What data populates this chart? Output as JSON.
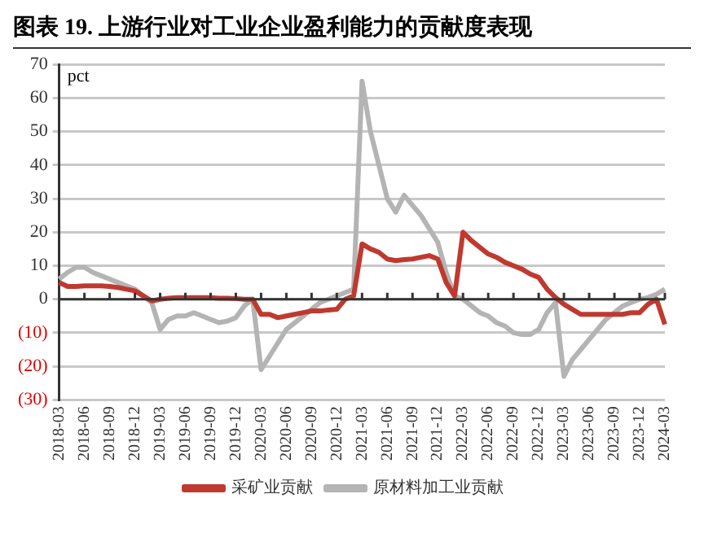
{
  "chart_data": {
    "type": "line",
    "title": "图表 19. 上游行业对工业企业盈利能力的贡献度表现",
    "ylabel": "pct",
    "categories": [
      "2018-03",
      null,
      null,
      "2018-06",
      null,
      null,
      "2018-09",
      null,
      null,
      "2018-12",
      null,
      null,
      "2019-03",
      null,
      null,
      "2019-06",
      null,
      null,
      "2019-09",
      null,
      null,
      "2019-12",
      null,
      null,
      "2020-03",
      null,
      null,
      "2020-06",
      null,
      null,
      "2020-09",
      null,
      null,
      "2020-12",
      null,
      null,
      "2021-03",
      null,
      null,
      "2021-06",
      null,
      null,
      "2021-09",
      null,
      null,
      "2021-12",
      null,
      null,
      "2022-03",
      null,
      null,
      "2022-06",
      null,
      null,
      "2022-09",
      null,
      null,
      "2022-12",
      null,
      null,
      "2023-03",
      null,
      null,
      "2023-06",
      null,
      null,
      "2023-09",
      null,
      null,
      "2023-12",
      null,
      null,
      "2024-03"
    ],
    "series": [
      {
        "name": "采矿业贡献",
        "color": "#c0392f",
        "values": [
          5,
          3.8,
          3.8,
          4,
          4,
          4,
          3.8,
          3.5,
          3,
          2.5,
          1,
          -0.5,
          0,
          0.3,
          0.5,
          0.5,
          0.5,
          0.5,
          0.5,
          0.3,
          0.3,
          0.2,
          0,
          0,
          -4.5,
          -4.5,
          -5.5,
          -5,
          -4.5,
          -4,
          -3.5,
          -3.5,
          -3.2,
          -3,
          0,
          1,
          16.5,
          15,
          14,
          12,
          11.5,
          11.8,
          12,
          12.5,
          13,
          12,
          5,
          1,
          20,
          17.5,
          15.5,
          13.5,
          12.5,
          11,
          10,
          9,
          7.5,
          6.5,
          3,
          0.5,
          -1.5,
          -3,
          -4.5,
          -4.5,
          -4.5,
          -4.5,
          -4.5,
          -4.5,
          -4,
          -4,
          -1.5,
          0,
          -7.5
        ]
      },
      {
        "name": "原材料加工业贡献",
        "color": "#b4b4b4",
        "values": [
          6,
          8,
          9.5,
          9.5,
          8,
          7,
          6,
          5,
          4,
          3,
          1,
          -1,
          -9,
          -6,
          -5,
          -5,
          -4,
          -5,
          -6,
          -7,
          -6.5,
          -5.5,
          -2,
          0,
          -21,
          -17,
          -13,
          -9,
          -7,
          -5,
          -3,
          -1,
          0,
          1,
          2,
          3,
          65,
          50,
          40,
          30,
          26,
          31,
          28,
          25,
          21,
          17,
          8,
          1,
          0,
          -2,
          -4,
          -5,
          -7,
          -8,
          -10,
          -10.5,
          -10.5,
          -9,
          -4,
          -1,
          -23,
          -18,
          -15,
          -12,
          -9,
          -6,
          -4,
          -2,
          -1,
          0,
          0.5,
          1.5,
          3
        ]
      }
    ],
    "ylim": [
      -30,
      70
    ],
    "yticks": [
      {
        "value": -30,
        "label": "(30)"
      },
      {
        "value": -20,
        "label": "(20)"
      },
      {
        "value": -10,
        "label": "(10)"
      },
      0,
      10,
      20,
      30,
      40,
      50,
      60,
      70
    ],
    "grid": "y",
    "legend": "bottom",
    "marker": "none",
    "line_style": "solid"
  }
}
